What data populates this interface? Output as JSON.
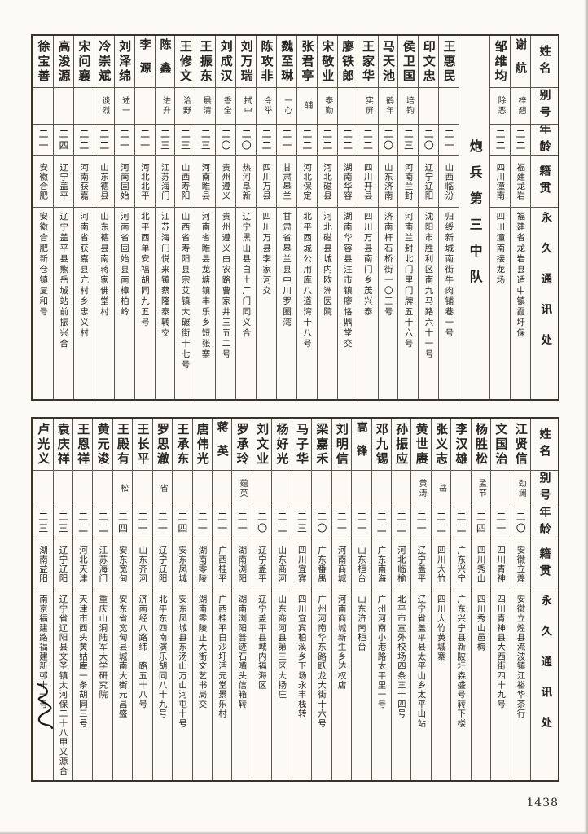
{
  "page_number": "1438",
  "headers": {
    "name": "姓名",
    "alias": "别号",
    "age": "年龄",
    "origin": "籍贯",
    "address": "永久通讯处"
  },
  "sections": [
    {
      "id": "top",
      "divider_after": 2,
      "divider_label": "炮兵第三中队",
      "entries": [
        {
          "name": "谢航",
          "alias": "梓翘",
          "age": "二二",
          "origin": "福建龙岩",
          "address": "福建省龙岩县适中镇霞圩保"
        },
        {
          "name": "邹维均",
          "alias": "除恶",
          "age": "二二",
          "origin": "四川潼南",
          "address": "四川潼南接龙场"
        },
        {
          "name": "王惠民",
          "alias": "",
          "age": "二一",
          "origin": "山西临汾",
          "address": "归绥新城南街牛肉铺巷一号"
        },
        {
          "name": "印文忠",
          "alias": "",
          "age": "二〇",
          "origin": "辽宁辽阳",
          "address": "沈阳市胜利区南九马路六十一号"
        },
        {
          "name": "侯卫国",
          "alias": "培钧",
          "age": "二三",
          "origin": "河南兰封",
          "address": "河南兰封北门里门牌五十六号"
        },
        {
          "name": "马天池",
          "alias": "鹤年",
          "age": "二〇",
          "origin": "山东济南",
          "address": "济南杆石桥街一〇三号"
        },
        {
          "name": "王家华",
          "alias": "实屏",
          "age": "二二",
          "origin": "四川开县",
          "address": "四川万县南门乡茂兴泰"
        },
        {
          "name": "廖铁郎",
          "alias": "",
          "age": "二二",
          "origin": "湖南华容",
          "address": "湖南华容县注市镇廖恪鼎堂交"
        },
        {
          "name": "宋敬业",
          "alias": "泰勤",
          "age": "二二",
          "origin": "河北磁县",
          "address": "河北磁县城内欧洲医院"
        },
        {
          "name": "张君亭",
          "alias": "辅",
          "age": "二二",
          "origin": "河北保定",
          "address": "北平西城公用库八道湾十八号"
        },
        {
          "name": "魏至琳",
          "alias": "一心",
          "age": "二一",
          "origin": "甘肃皋兰",
          "address": "甘肃省皋兰县中川罗圈湾"
        },
        {
          "name": "陈攻非",
          "alias": "令举",
          "age": "二二",
          "origin": "四川万县",
          "address": "四川万县李家河交"
        },
        {
          "name": "刘万瑞",
          "alias": "拭中",
          "age": "二〇",
          "origin": "热河阜新",
          "address": "辽宁黑山县白土厂门同义合"
        },
        {
          "name": "刘成汉",
          "alias": "香全",
          "age": "二〇",
          "origin": "贵州遵义",
          "address": "贵州遵义白农路曹家井三五二号"
        },
        {
          "name": "王振东",
          "alias": "晨清",
          "age": "二三",
          "origin": "河南睢县",
          "address": "河南省睢县龙塘镇丰乐乡短张寨"
        },
        {
          "name": "王修文",
          "alias": "洽野",
          "age": "二三",
          "origin": "山西寿阳",
          "address": "山西省寿阳县宗艾镇大碾街十七号"
        },
        {
          "name": "陈鑫",
          "alias": "进升",
          "age": "二三",
          "origin": "江苏海门",
          "address": "江苏海门悦来镇蔡隆泰转交"
        },
        {
          "name": "李源",
          "alias": "",
          "age": "二一",
          "origin": "河北北平",
          "address": "北平西单安福胡同九五号"
        },
        {
          "name": "刘泽绵",
          "alias": "述一",
          "age": "二一",
          "origin": "河南固始",
          "address": "河南省固始县南樟柏岭"
        },
        {
          "name": "冷崇斌",
          "alias": "谈烈",
          "age": "二二",
          "origin": "山东德县",
          "address": "山东德县南蒋家佛堂村"
        },
        {
          "name": "宋问襄",
          "alias": "",
          "age": "二二",
          "origin": "河南获嘉",
          "address": "河南省获嘉县亢村乡忠义村"
        },
        {
          "name": "高浚源",
          "alias": "",
          "age": "二四",
          "origin": "辽宁盖平",
          "address": "辽宁盖平县熊岳城站前振兴合"
        },
        {
          "name": "徐宝善",
          "alias": "",
          "age": "二一",
          "origin": "安徽合肥",
          "address": "安徽合肥新仓镇复和号"
        }
      ]
    },
    {
      "id": "bottom",
      "divider_after": -1,
      "divider_label": "",
      "entries": [
        {
          "name": "江贤信",
          "alias": "劲澜",
          "age": "二〇",
          "origin": "安徽立煌",
          "address": "安徽立煌县流波镇江裕华茶行"
        },
        {
          "name": "文国治",
          "alias": "",
          "age": "二一",
          "origin": "四川青神",
          "address": "四川青神县大西街四十九号"
        },
        {
          "name": "杨胜松",
          "alias": "孟节",
          "age": "二四",
          "origin": "四川秀山",
          "address": "四川秀山邑梅"
        },
        {
          "name": "李汉雄",
          "alias": "",
          "age": "二二",
          "origin": "广东兴宁",
          "address": "广东兴宁县新陂圩森盛号转下楼"
        },
        {
          "name": "张义志",
          "alias": "岳",
          "age": "二二",
          "origin": "四川大竹",
          "address": "四川大竹黄城寨"
        },
        {
          "name": "黄世赓",
          "alias": "黄涛",
          "age": "二一",
          "origin": "辽宁盖平",
          "address": "辽宁省盖平县太平山乡太平山站"
        },
        {
          "name": "孙振应",
          "alias": "",
          "age": "二二",
          "origin": "河北临榆",
          "address": "北平市宣外校场四条三十四号"
        },
        {
          "name": "邓九锡",
          "alias": "",
          "age": "二二",
          "origin": "广东南海",
          "address": "广州河南小港路太平里一号"
        },
        {
          "name": "高锋",
          "alias": "",
          "age": "二一",
          "origin": "山东桓台",
          "address": "山东济南桓台"
        },
        {
          "name": "刘明信",
          "alias": "",
          "age": "二一",
          "origin": "河南商城",
          "address": "河南商城新生乡达权店"
        },
        {
          "name": "梁嘉禾",
          "alias": "",
          "age": "二〇",
          "origin": "广东番禺",
          "address": "广州河南华东路跃龙大街十六号"
        },
        {
          "name": "马子华",
          "alias": "",
          "age": "二三",
          "origin": "四川宜宾",
          "address": "四川宜宾柏溪乡下场永丰栈转"
        },
        {
          "name": "杨好光",
          "alias": "",
          "age": "二二",
          "origin": "山东商河",
          "address": "山东商河县第三区大扬庄"
        },
        {
          "name": "刘文业",
          "alias": "",
          "age": "二〇",
          "origin": "辽宁盖平",
          "address": "辽宁盖平县城内福海区"
        },
        {
          "name": "罗承玲",
          "alias": "蕴英",
          "age": "二一",
          "origin": "湖南浏阳",
          "address": "湖南浏阳普迹石嘴头信箱转"
        },
        {
          "name": "蒋英",
          "alias": "",
          "age": "二一",
          "origin": "广西桂平",
          "address": "广西桂平白沙圩活元堂景乐村"
        },
        {
          "name": "唐伟光",
          "alias": "",
          "age": "二一",
          "origin": "湖南零陵",
          "address": "湖南零陵正大街文艺书局交"
        },
        {
          "name": "王承东",
          "alias": "",
          "age": "二四",
          "origin": "安东凤城",
          "address": "安东凤城县东汤山万山河屯十号"
        },
        {
          "name": "罗思澈",
          "alias": "省",
          "age": "二一",
          "origin": "辽宁辽阳",
          "address": "北平东四南演乐胡同八十九号"
        },
        {
          "name": "王长平",
          "alias": "",
          "age": "二一",
          "origin": "山东齐河",
          "address": "济南经八路纬一路五十八号"
        },
        {
          "name": "王殿有",
          "alias": "松",
          "age": "二四",
          "origin": "安东宽甸",
          "address": "安东省宽甸县城南大街元昌盛"
        },
        {
          "name": "黄元浚",
          "alias": "",
          "age": "二二",
          "origin": "江苏海门",
          "address": "重庆山洞陆军大学研究院"
        },
        {
          "name": "王恩祥",
          "alias": "",
          "age": "二二",
          "origin": "河北天津",
          "address": "天津市西头黄姑庵一条胡同三号"
        },
        {
          "name": "袁庆祥",
          "alias": "",
          "age": "二三",
          "origin": "辽宁辽阳",
          "address": "辽宁省辽阳县文圣镇太河保二十八甲义源合"
        },
        {
          "name": "卢光义",
          "alias": "",
          "age": "二三",
          "origin": "湖南益阳",
          "address": "南京福建路福建新邨十一号"
        }
      ]
    }
  ]
}
